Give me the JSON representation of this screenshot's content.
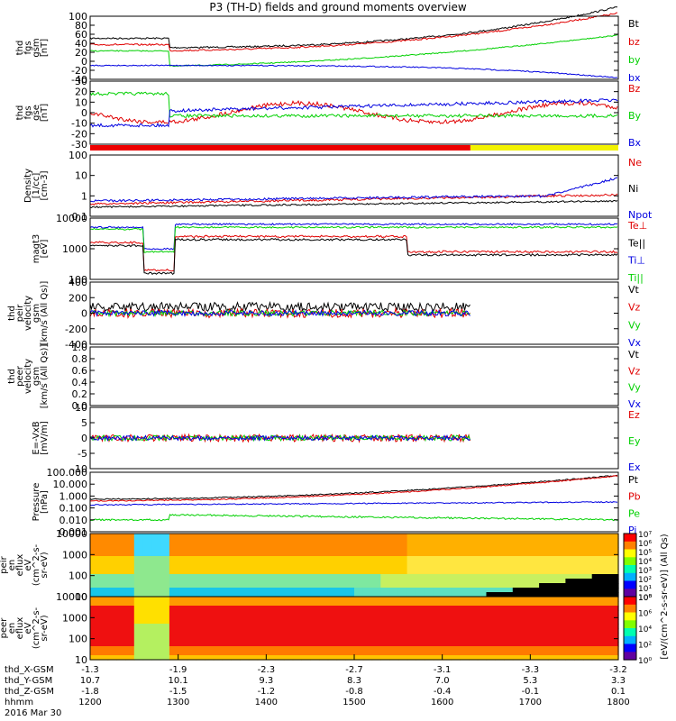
{
  "title": "P3 (TH-D) fields and ground moments overview",
  "colors": {
    "black": "#000000",
    "red": "#e00000",
    "green": "#00d000",
    "blue": "#0000e0",
    "yellow": "#f2f200"
  },
  "chart_data": [
    {
      "type": "line",
      "id": "fgs_gsm_mag",
      "ylabel_lines": [
        "thd",
        "fgs",
        "gsm",
        "[nT]"
      ],
      "ylim": [
        -40,
        100
      ],
      "yticks": [
        "100",
        "80",
        "60",
        "40",
        "20",
        "0",
        "-20",
        "-40"
      ],
      "series": [
        {
          "name": "Bt",
          "color": "#000000"
        },
        {
          "name": "bz",
          "color": "#e00000"
        },
        {
          "name": "by",
          "color": "#00d000"
        },
        {
          "name": "bx",
          "color": "#0000e0"
        }
      ]
    },
    {
      "type": "line",
      "id": "fgs_gse_mag",
      "ylabel_lines": [
        "thd",
        "fgs",
        "gse",
        "[nT]"
      ],
      "ylim": [
        -30,
        30
      ],
      "yticks": [
        "30",
        "20",
        "10",
        "0",
        "-10",
        "-20",
        "-30"
      ],
      "series": [
        {
          "name": "Bz",
          "color": "#e00000"
        },
        {
          "name": "By",
          "color": "#00d000"
        },
        {
          "name": "Bx",
          "color": "#0000e0"
        }
      ]
    },
    {
      "type": "line",
      "id": "density",
      "ylabel_lines": [
        "Density",
        "[1/cc]",
        "[cm-3]"
      ],
      "log": true,
      "yticks": [
        "100",
        "10",
        "1",
        "0.1"
      ],
      "series": [
        {
          "name": "Ne",
          "color": "#e00000"
        },
        {
          "name": "Ni",
          "color": "#000000"
        },
        {
          "name": "Npot",
          "color": "#0000e0"
        }
      ]
    },
    {
      "type": "line",
      "id": "temperature",
      "ylabel_lines": [
        "magt3",
        "[eV]"
      ],
      "log": true,
      "yticks": [
        "10000",
        "1000",
        "100"
      ],
      "series": [
        {
          "name": "Te⊥",
          "color": "#e00000"
        },
        {
          "name": "Te||",
          "color": "#000000"
        },
        {
          "name": "Ti⊥",
          "color": "#0000e0"
        },
        {
          "name": "Ti||",
          "color": "#00d000"
        }
      ]
    },
    {
      "type": "line",
      "id": "ion_velocity",
      "ylabel_lines": [
        "thd",
        "peir",
        "velocity",
        "gsm",
        "[km/s (All Qs)]"
      ],
      "ylim": [
        -400,
        400
      ],
      "yticks": [
        "400",
        "200",
        "0",
        "-200",
        "-400"
      ],
      "series": [
        {
          "name": "Vt",
          "color": "#000000"
        },
        {
          "name": "Vz",
          "color": "#e00000"
        },
        {
          "name": "Vy",
          "color": "#00d000"
        },
        {
          "name": "Vx",
          "color": "#0000e0"
        }
      ]
    },
    {
      "type": "line",
      "id": "electron_velocity",
      "ylabel_lines": [
        "thd",
        "peer",
        "velocity",
        "gsm",
        "[km/s (All Qs)]"
      ],
      "ylim": [
        0,
        1
      ],
      "yticks": [
        "1.0",
        "0.8",
        "0.6",
        "0.4",
        "0.2",
        "0.0"
      ],
      "series": [
        {
          "name": "Vt",
          "color": "#000000"
        },
        {
          "name": "Vz",
          "color": "#e00000"
        },
        {
          "name": "Vy",
          "color": "#00d000"
        },
        {
          "name": "Vx",
          "color": "#0000e0"
        }
      ]
    },
    {
      "type": "line",
      "id": "e_field",
      "ylabel_lines": [
        "E=-VxB",
        "[mV/m]"
      ],
      "ylim": [
        -10,
        10
      ],
      "yticks": [
        "10",
        "5",
        "0",
        "-5",
        "-10"
      ],
      "series": [
        {
          "name": "Ez",
          "color": "#e00000"
        },
        {
          "name": "Ey",
          "color": "#00d000"
        },
        {
          "name": "Ex",
          "color": "#0000e0"
        }
      ]
    },
    {
      "type": "line",
      "id": "pressure",
      "ylabel_lines": [
        "Pressure",
        "[nPa]"
      ],
      "log": true,
      "yticks": [
        "100.000",
        "10.000",
        "1.000",
        "0.100",
        "0.010",
        "0.001"
      ],
      "series": [
        {
          "name": "Pt",
          "color": "#000000"
        },
        {
          "name": "Pb",
          "color": "#e00000"
        },
        {
          "name": "Pe",
          "color": "#00d000"
        },
        {
          "name": "Pi",
          "color": "#0000e0"
        }
      ]
    },
    {
      "type": "heatmap",
      "id": "ion_spectrogram",
      "ylabel_lines": [
        "thd",
        "peir",
        "en",
        "eflux",
        "eV",
        "(cm^2-s-",
        "sr-eV)"
      ],
      "log": true,
      "yticks": [
        "10000",
        "1000",
        "100",
        "10"
      ]
    },
    {
      "type": "heatmap",
      "id": "electron_spectrogram",
      "ylabel_lines": [
        "thd",
        "peer",
        "en",
        "eflux",
        "eV",
        "(cm^2-s-",
        "sr-eV)"
      ],
      "log": true,
      "yticks": [
        "10000",
        "1000",
        "100",
        "10"
      ]
    }
  ],
  "colorbar": {
    "label": "[eV/(cm^2-s-sr-eV)] (All Qs)",
    "ion_ticks": [
      "10⁷",
      "10⁶",
      "10⁵",
      "10⁴",
      "10³",
      "10²",
      "10¹",
      "10⁰"
    ],
    "electron_ticks": [
      "10⁸",
      "10⁶",
      "10⁴",
      "10²",
      "10⁰"
    ]
  },
  "xaxis": {
    "rows": [
      {
        "label": "thd_X-GSM",
        "values": [
          "-1.3",
          "-1.9",
          "-2.3",
          "-2.7",
          "-3.1",
          "-3.3",
          "-3.2"
        ]
      },
      {
        "label": "thd_Y-GSM",
        "values": [
          "10.7",
          "10.1",
          "9.3",
          "8.3",
          "7.0",
          "5.3",
          "3.3"
        ]
      },
      {
        "label": "thd_Z-GSM",
        "values": [
          "-1.8",
          "-1.5",
          "-1.2",
          "-0.8",
          "-0.4",
          "-0.1",
          "0.1"
        ]
      },
      {
        "label": "hhmm",
        "values": [
          "1200",
          "1300",
          "1400",
          "1500",
          "1600",
          "1700",
          "1800"
        ]
      }
    ],
    "date": "2016 Mar 30"
  }
}
